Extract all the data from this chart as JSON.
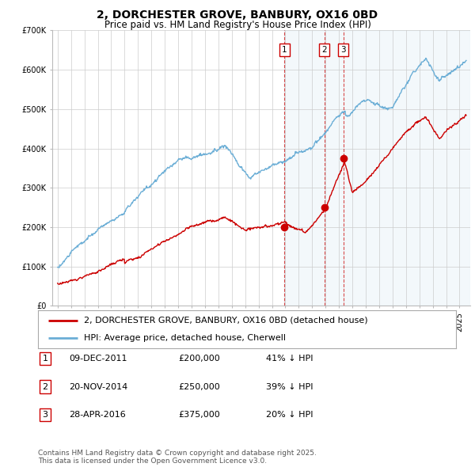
{
  "title": "2, DORCHESTER GROVE, BANBURY, OX16 0BD",
  "subtitle": "Price paid vs. HM Land Registry's House Price Index (HPI)",
  "ylim": [
    0,
    700000
  ],
  "yticks": [
    0,
    100000,
    200000,
    300000,
    400000,
    500000,
    600000,
    700000
  ],
  "ytick_labels": [
    "£0",
    "£100K",
    "£200K",
    "£300K",
    "£400K",
    "£500K",
    "£600K",
    "£700K"
  ],
  "xlim_start": 1994.6,
  "xlim_end": 2025.8,
  "hpi_color": "#6baed6",
  "price_color": "#cc0000",
  "grid_color": "#cccccc",
  "background_color": "#ffffff",
  "sale_dates": [
    2011.94,
    2014.9,
    2016.33
  ],
  "sale_prices": [
    200000,
    250000,
    375000
  ],
  "sale_labels": [
    "1",
    "2",
    "3"
  ],
  "legend_line1": "2, DORCHESTER GROVE, BANBURY, OX16 0BD (detached house)",
  "legend_line2": "HPI: Average price, detached house, Cherwell",
  "table_rows": [
    [
      "1",
      "09-DEC-2011",
      "£200,000",
      "41% ↓ HPI"
    ],
    [
      "2",
      "20-NOV-2014",
      "£250,000",
      "39% ↓ HPI"
    ],
    [
      "3",
      "28-APR-2016",
      "£375,000",
      "20% ↓ HPI"
    ]
  ],
  "footnote": "Contains HM Land Registry data © Crown copyright and database right 2025.\nThis data is licensed under the Open Government Licence v3.0.",
  "title_fontsize": 10,
  "subtitle_fontsize": 8.5,
  "tick_fontsize": 7,
  "legend_fontsize": 8,
  "table_fontsize": 8,
  "footnote_fontsize": 6.5
}
